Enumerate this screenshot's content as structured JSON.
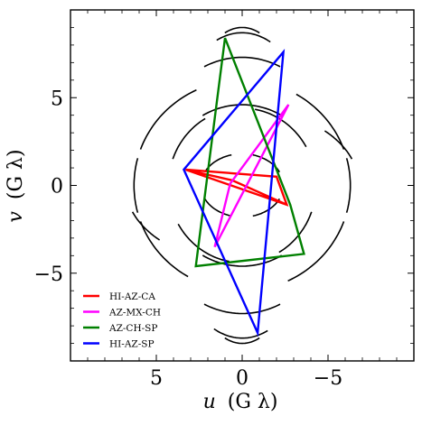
{
  "chart_data": {
    "type": "line",
    "xlabel_var": "u",
    "ylabel_var": "v",
    "axis_unit": "(G λ)",
    "x_axis_reversed": true,
    "xlim": [
      10,
      -10
    ],
    "ylim": [
      -10,
      10
    ],
    "x_ticks": [
      5,
      0,
      -5
    ],
    "x_tick_labels": [
      "5",
      "0",
      "−5"
    ],
    "y_ticks": [
      -5,
      0,
      5
    ],
    "y_tick_labels": [
      "−5",
      "0",
      "5"
    ],
    "legend_position": "bottom-left",
    "series": [
      {
        "name": "HI-AZ-CA",
        "color": "#ff0000",
        "closed": true,
        "points": [
          [
            3.3,
            0.9
          ],
          [
            -2.6,
            -1.1
          ],
          [
            0.6,
            0.3
          ],
          [
            3.3,
            0.9
          ],
          [
            -2.0,
            0.5
          ],
          [
            -2.6,
            -1.1
          ]
        ]
      },
      {
        "name": "AZ-MX-CH",
        "color": "#ff00ff",
        "closed": true,
        "points": [
          [
            1.6,
            -3.5
          ],
          [
            -2.7,
            4.6
          ],
          [
            0.7,
            0.1
          ],
          [
            1.6,
            -3.5
          ]
        ]
      },
      {
        "name": "AZ-CH-SP",
        "color": "#008000",
        "closed": true,
        "points": [
          [
            1.0,
            8.4
          ],
          [
            -2.8,
            -1.1
          ],
          [
            -3.6,
            -3.9
          ],
          [
            2.7,
            -4.6
          ],
          [
            1.0,
            8.4
          ]
        ]
      },
      {
        "name": "HI-AZ-SP",
        "color": "#0000ff",
        "closed": true,
        "points": [
          [
            -2.4,
            7.6
          ],
          [
            3.4,
            0.9
          ],
          [
            -0.9,
            -8.4
          ],
          [
            -2.4,
            7.6
          ]
        ]
      }
    ],
    "uv_tracks": {
      "color": "#000000",
      "arcs": [
        {
          "rx": 2.4,
          "ry": 1.8,
          "from": 105,
          "to": 155
        },
        {
          "rx": 2.4,
          "ry": 1.8,
          "from": -75,
          "to": -25
        },
        {
          "rx": 2.4,
          "ry": 1.8,
          "from": 25,
          "to": 75
        },
        {
          "rx": 2.4,
          "ry": 1.8,
          "from": -155,
          "to": -105
        },
        {
          "rx": 4.3,
          "ry": 4.4,
          "from": 100,
          "to": 150
        },
        {
          "rx": 4.3,
          "ry": 4.4,
          "from": -80,
          "to": -30
        },
        {
          "rx": 4.3,
          "ry": 4.4,
          "from": 20,
          "to": 60
        },
        {
          "rx": 4.3,
          "ry": 4.4,
          "from": -160,
          "to": -120
        },
        {
          "rx": 6.3,
          "ry": 6.0,
          "from": 120,
          "to": 160
        },
        {
          "rx": 6.3,
          "ry": 6.0,
          "from": -60,
          "to": -20
        },
        {
          "rx": 6.3,
          "ry": 6.0,
          "from": 165,
          "to": 195
        },
        {
          "rx": 6.3,
          "ry": 6.0,
          "from": -15,
          "to": 15
        },
        {
          "rx": 6.3,
          "ry": 6.0,
          "from": 200,
          "to": 245
        },
        {
          "rx": 6.3,
          "ry": 6.0,
          "from": 20,
          "to": 65
        },
        {
          "rx": 5.9,
          "ry": 7.3,
          "from": 68,
          "to": 112
        },
        {
          "rx": 5.9,
          "ry": 7.3,
          "from": 248,
          "to": 292
        },
        {
          "rx": 4.8,
          "ry": 8.7,
          "from": 72,
          "to": 110
        },
        {
          "rx": 4.8,
          "ry": 8.7,
          "from": 252,
          "to": 290
        },
        {
          "rx": 3.9,
          "ry": 9.0,
          "from": 75,
          "to": 105
        },
        {
          "rx": 3.9,
          "ry": 9.0,
          "from": 255,
          "to": 285
        },
        {
          "rx": 4.6,
          "ry": 4.6,
          "from": 60,
          "to": 120
        },
        {
          "rx": 4.6,
          "ry": 4.6,
          "from": 240,
          "to": 300
        },
        {
          "rx": 6.8,
          "ry": 4.4,
          "from": 135,
          "to": 160
        },
        {
          "rx": 6.8,
          "ry": 4.4,
          "from": -45,
          "to": -20
        }
      ]
    }
  }
}
